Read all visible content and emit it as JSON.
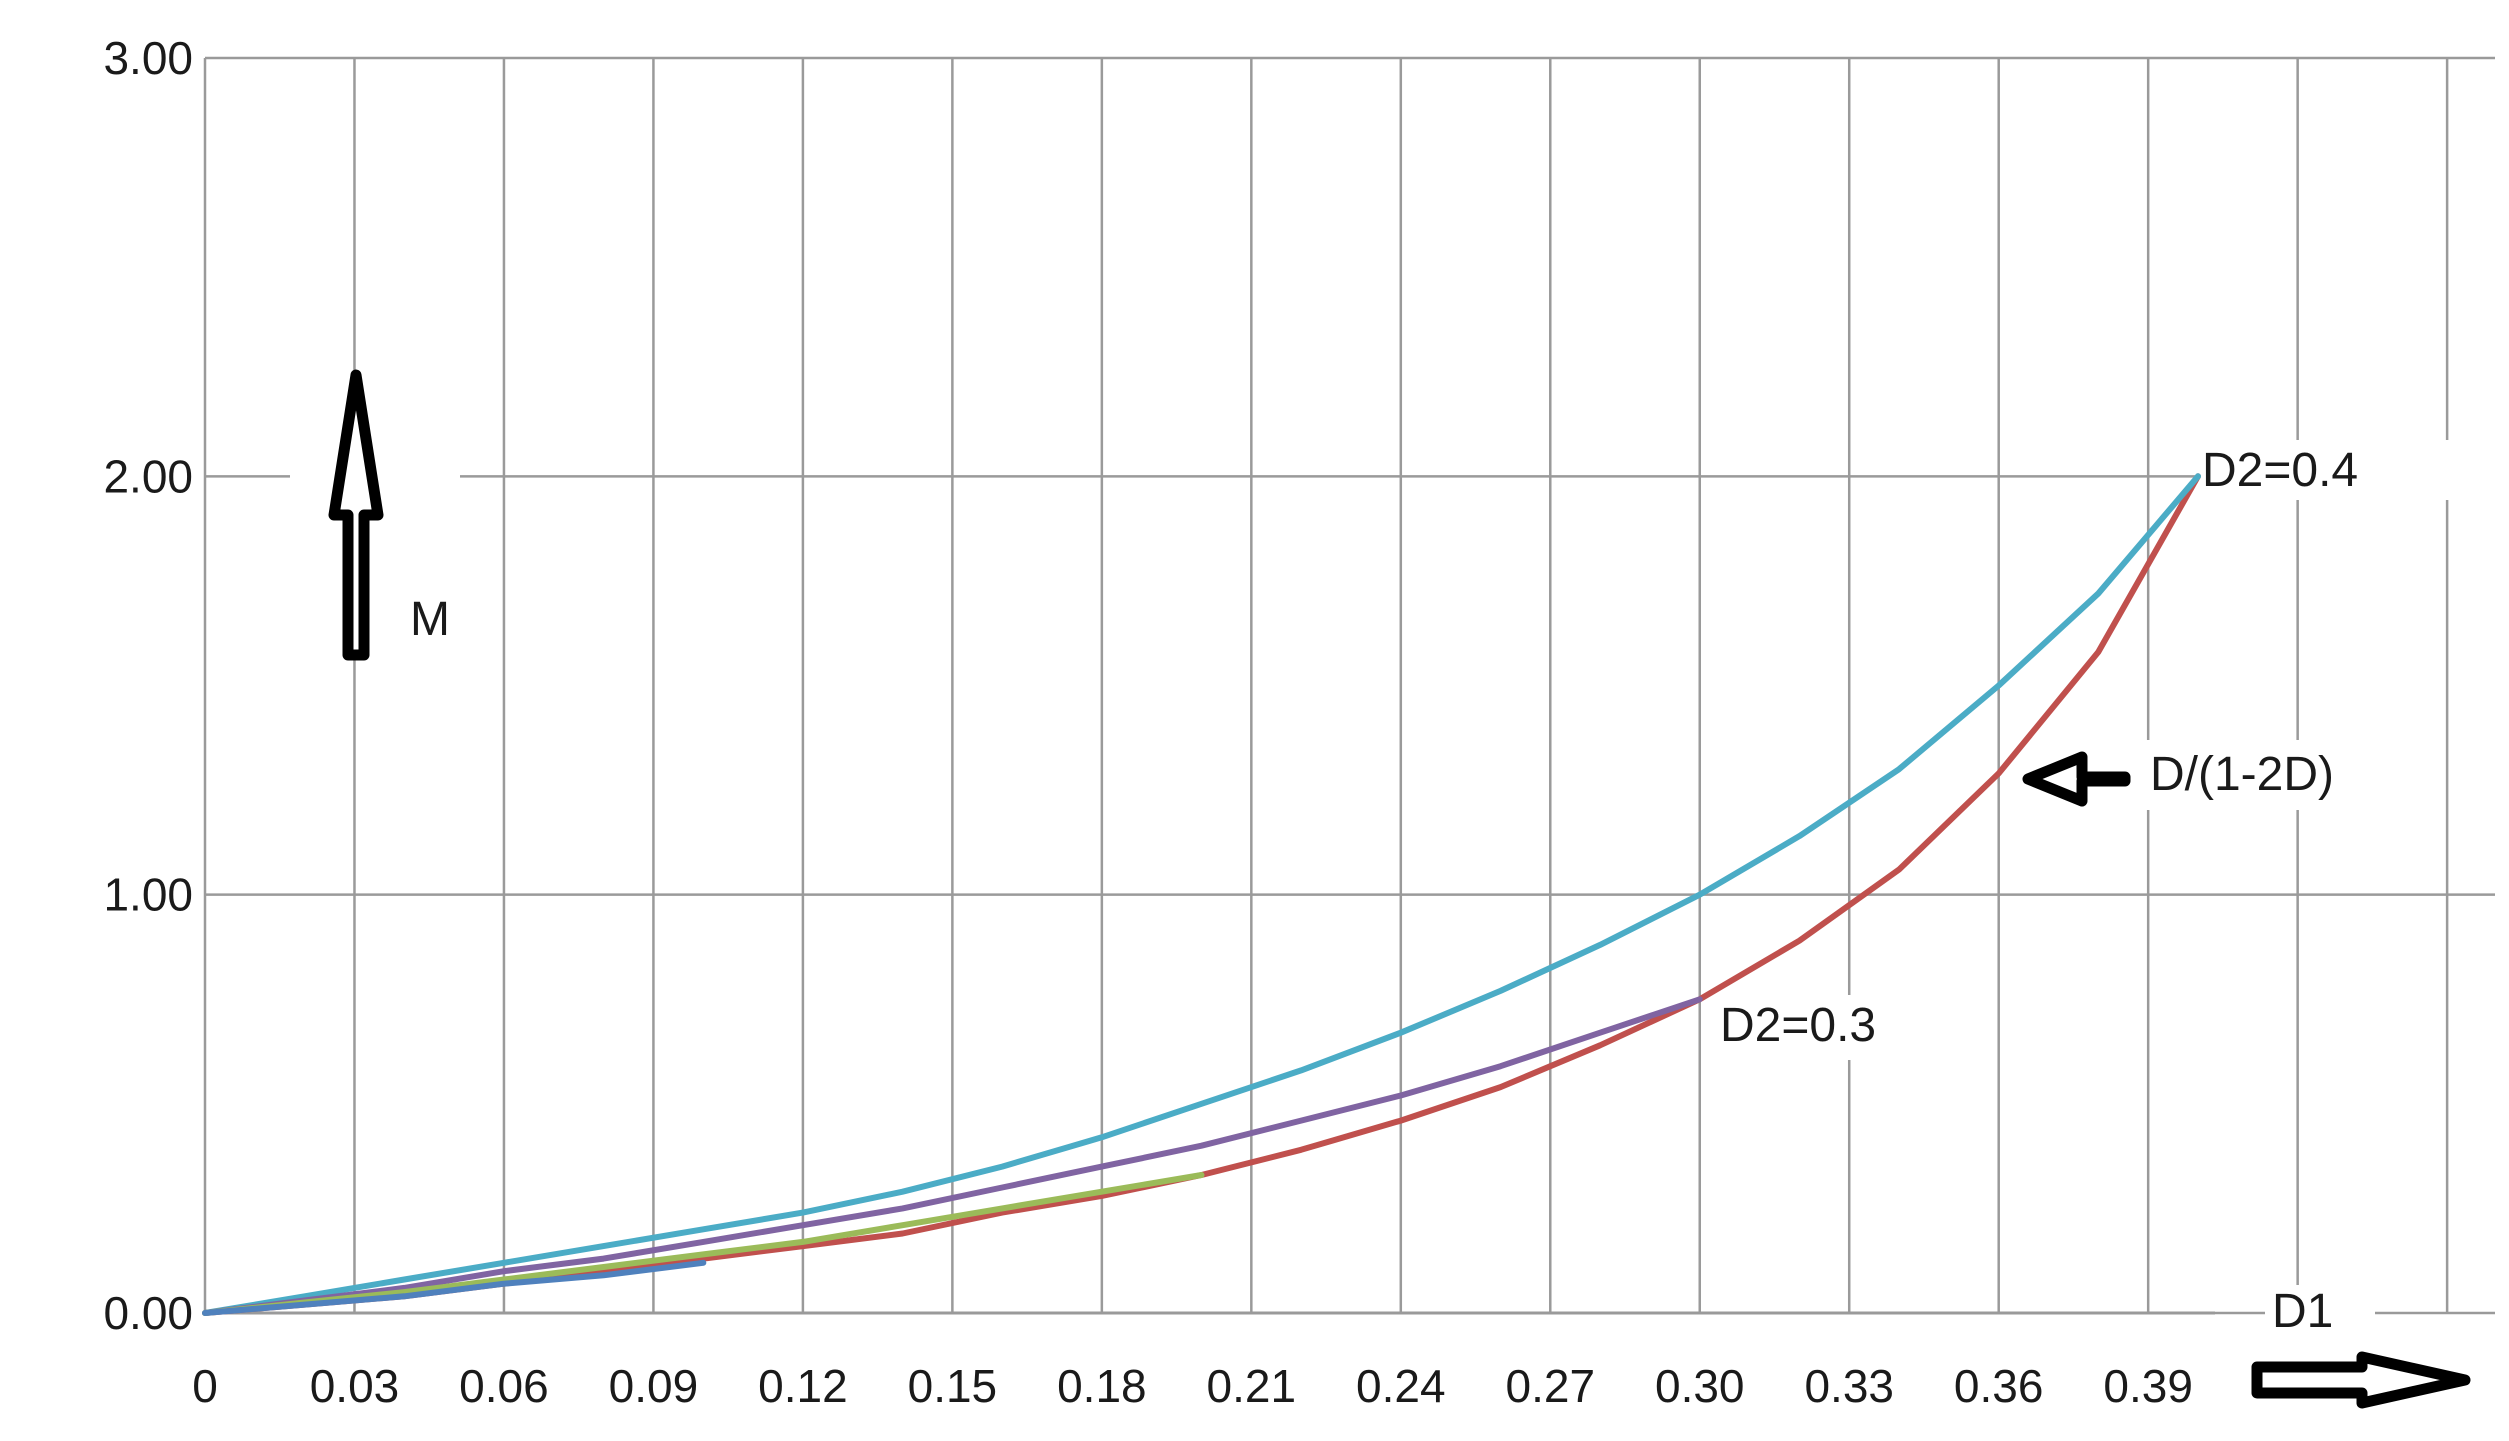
{
  "chart_data": {
    "type": "line",
    "x_tick_labels": [
      "0",
      "0.03",
      "0.06",
      "0.09",
      "0.12",
      "0.15",
      "0.18",
      "0.21",
      "0.24",
      "0.27",
      "0.30",
      "0.33",
      "0.36",
      "0.39"
    ],
    "y_tick_labels": [
      "0.00",
      "1.00",
      "2.00",
      "3.00"
    ],
    "xlim": [
      0,
      0.4
    ],
    "ylim": [
      0,
      3
    ],
    "grid": true,
    "annotations": {
      "x_axis": "D1",
      "y_axis": "M",
      "curve_label": "D/(1-2D)",
      "d2_04": "D2=0.4",
      "d2_03": "D2=0.3"
    },
    "series": [
      {
        "color": "#4bacc6",
        "x": [
          0,
          0.02,
          0.04,
          0.06,
          0.08,
          0.1,
          0.12,
          0.14,
          0.16,
          0.18,
          0.2,
          0.22,
          0.24,
          0.26,
          0.28,
          0.3,
          0.32,
          0.34,
          0.36,
          0.38,
          0.4
        ],
        "y": [
          0,
          0.04,
          0.08,
          0.12,
          0.16,
          0.2,
          0.24,
          0.29,
          0.35,
          0.42,
          0.5,
          0.58,
          0.67,
          0.77,
          0.88,
          1.0,
          1.14,
          1.3,
          1.5,
          1.72,
          2.0
        ]
      },
      {
        "color": "#c0504d",
        "x": [
          0,
          0.02,
          0.04,
          0.06,
          0.08,
          0.1,
          0.12,
          0.14,
          0.16,
          0.18,
          0.2,
          0.22,
          0.24,
          0.26,
          0.28,
          0.3,
          0.32,
          0.34,
          0.36,
          0.38,
          0.4
        ],
        "y": [
          0,
          0.02,
          0.04,
          0.07,
          0.1,
          0.13,
          0.16,
          0.19,
          0.24,
          0.28,
          0.33,
          0.39,
          0.46,
          0.54,
          0.64,
          0.75,
          0.89,
          1.06,
          1.29,
          1.58,
          2.0
        ]
      },
      {
        "color": "#8064a2",
        "x": [
          0,
          0.02,
          0.04,
          0.06,
          0.08,
          0.1,
          0.12,
          0.14,
          0.16,
          0.18,
          0.2,
          0.22,
          0.24,
          0.26,
          0.28,
          0.3
        ],
        "y": [
          0,
          0.03,
          0.06,
          0.1,
          0.13,
          0.17,
          0.21,
          0.25,
          0.3,
          0.35,
          0.4,
          0.46,
          0.52,
          0.59,
          0.67,
          0.75
        ]
      },
      {
        "color": "#9bbb59",
        "x": [
          0,
          0.02,
          0.04,
          0.06,
          0.08,
          0.1,
          0.12,
          0.14,
          0.16,
          0.18,
          0.2
        ],
        "y": [
          0,
          0.025,
          0.05,
          0.08,
          0.11,
          0.14,
          0.17,
          0.21,
          0.25,
          0.29,
          0.33
        ]
      },
      {
        "color": "#4f81bd",
        "x": [
          0,
          0.02,
          0.04,
          0.06,
          0.08,
          0.1
        ],
        "y": [
          0,
          0.02,
          0.04,
          0.07,
          0.09,
          0.12
        ]
      }
    ]
  }
}
